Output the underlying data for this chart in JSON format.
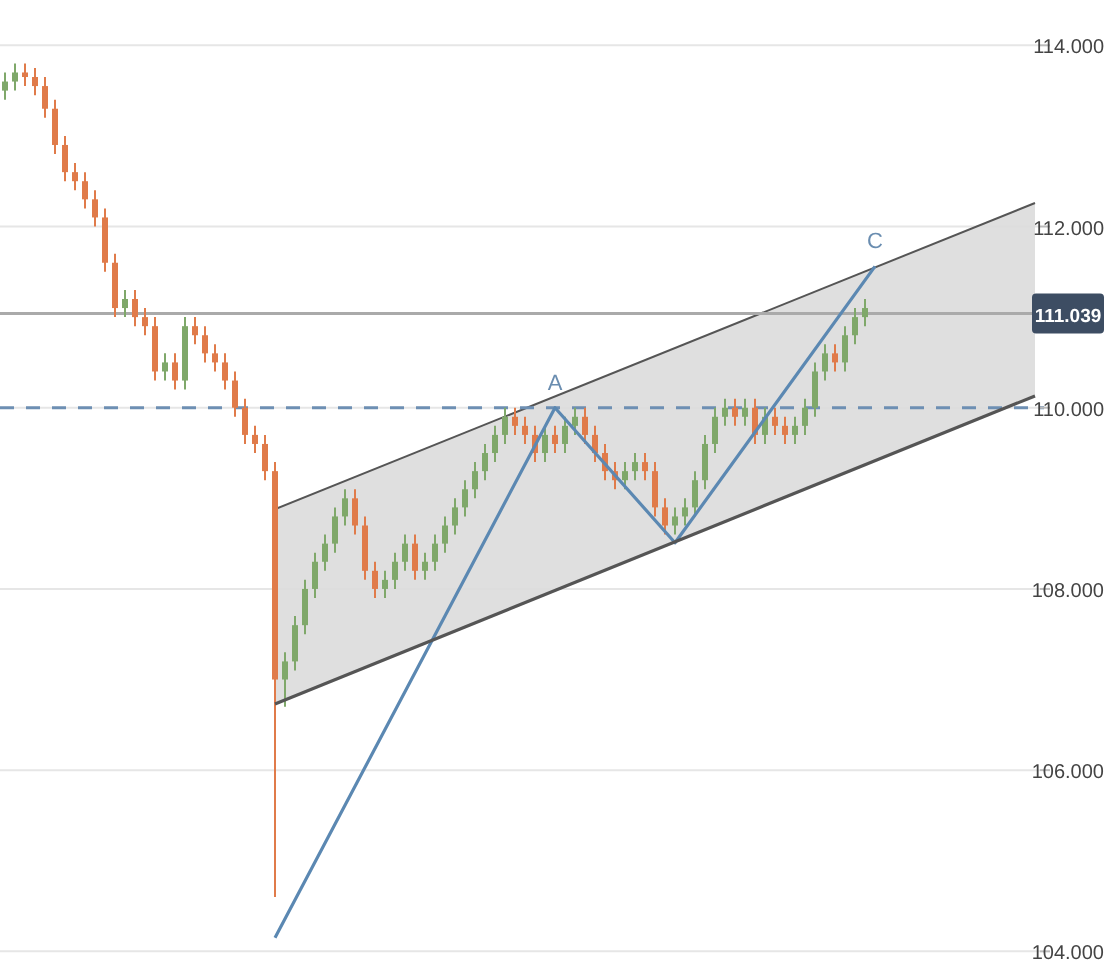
{
  "chart_data": {
    "type": "candlestick",
    "categories": [
      null,
      null,
      null,
      null,
      null,
      null,
      null,
      null,
      null,
      null,
      null,
      null,
      null,
      null,
      null,
      null,
      null,
      null,
      null,
      null,
      null,
      null,
      null,
      null,
      null,
      null,
      null,
      null,
      null,
      null,
      null,
      null,
      null,
      null,
      null,
      null,
      null,
      null,
      null,
      null,
      null,
      null,
      null,
      null,
      null,
      null,
      null,
      null,
      null,
      null,
      null,
      null,
      null,
      null,
      null,
      null,
      null,
      null,
      null,
      null,
      null,
      null,
      null,
      null,
      null,
      null,
      null,
      null,
      null,
      null,
      null,
      null,
      null,
      null,
      null,
      null,
      null,
      null,
      null,
      null,
      null,
      null,
      null,
      null,
      null,
      null,
      null,
      null,
      null,
      null,
      null,
      null,
      null,
      null,
      null,
      null,
      null,
      null,
      null,
      null,
      null,
      null,
      null,
      null
    ],
    "ohlc": [
      [
        113.5,
        113.7,
        113.4,
        113.6
      ],
      [
        113.6,
        113.8,
        113.5,
        113.7
      ],
      [
        113.7,
        113.8,
        113.55,
        113.65
      ],
      [
        113.65,
        113.75,
        113.45,
        113.55
      ],
      [
        113.55,
        113.65,
        113.2,
        113.3
      ],
      [
        113.3,
        113.4,
        112.8,
        112.9
      ],
      [
        112.9,
        113.0,
        112.5,
        112.6
      ],
      [
        112.6,
        112.7,
        112.4,
        112.5
      ],
      [
        112.5,
        112.6,
        112.2,
        112.3
      ],
      [
        112.3,
        112.4,
        112.0,
        112.1
      ],
      [
        112.1,
        112.2,
        111.5,
        111.6
      ],
      [
        111.6,
        111.7,
        111.0,
        111.1
      ],
      [
        111.1,
        111.3,
        111.0,
        111.2
      ],
      [
        111.2,
        111.3,
        110.9,
        111.0
      ],
      [
        111.0,
        111.1,
        110.8,
        110.9
      ],
      [
        110.9,
        111.0,
        110.3,
        110.4
      ],
      [
        110.4,
        110.6,
        110.3,
        110.5
      ],
      [
        110.5,
        110.6,
        110.2,
        110.3
      ],
      [
        110.3,
        111.0,
        110.2,
        110.9
      ],
      [
        110.9,
        111.0,
        110.7,
        110.8
      ],
      [
        110.8,
        110.9,
        110.5,
        110.6
      ],
      [
        110.6,
        110.7,
        110.4,
        110.5
      ],
      [
        110.5,
        110.6,
        110.2,
        110.3
      ],
      [
        110.3,
        110.4,
        109.9,
        110.0
      ],
      [
        110.0,
        110.1,
        109.6,
        109.7
      ],
      [
        109.7,
        109.8,
        109.5,
        109.6
      ],
      [
        109.6,
        109.7,
        109.2,
        109.3
      ],
      [
        109.3,
        109.4,
        104.6,
        107.0
      ],
      [
        107.0,
        107.3,
        106.7,
        107.2
      ],
      [
        107.2,
        107.7,
        107.1,
        107.6
      ],
      [
        107.6,
        108.1,
        107.5,
        108.0
      ],
      [
        108.0,
        108.4,
        107.9,
        108.3
      ],
      [
        108.3,
        108.6,
        108.2,
        108.5
      ],
      [
        108.5,
        108.9,
        108.4,
        108.8
      ],
      [
        108.8,
        109.1,
        108.7,
        109.0
      ],
      [
        109.0,
        109.1,
        108.6,
        108.7
      ],
      [
        108.7,
        108.8,
        108.1,
        108.2
      ],
      [
        108.2,
        108.3,
        107.9,
        108.0
      ],
      [
        108.0,
        108.2,
        107.9,
        108.1
      ],
      [
        108.1,
        108.4,
        108.0,
        108.3
      ],
      [
        108.3,
        108.6,
        108.2,
        108.5
      ],
      [
        108.5,
        108.6,
        108.1,
        108.2
      ],
      [
        108.2,
        108.4,
        108.1,
        108.3
      ],
      [
        108.3,
        108.6,
        108.2,
        108.5
      ],
      [
        108.5,
        108.8,
        108.4,
        108.7
      ],
      [
        108.7,
        109.0,
        108.6,
        108.9
      ],
      [
        108.9,
        109.2,
        108.8,
        109.1
      ],
      [
        109.1,
        109.4,
        109.0,
        109.3
      ],
      [
        109.3,
        109.6,
        109.2,
        109.5
      ],
      [
        109.5,
        109.8,
        109.4,
        109.7
      ],
      [
        109.7,
        110.0,
        109.6,
        109.9
      ],
      [
        109.9,
        110.0,
        109.7,
        109.8
      ],
      [
        109.8,
        109.9,
        109.6,
        109.7
      ],
      [
        109.7,
        109.8,
        109.4,
        109.5
      ],
      [
        109.5,
        109.8,
        109.4,
        109.7
      ],
      [
        109.7,
        109.8,
        109.5,
        109.6
      ],
      [
        109.6,
        109.9,
        109.5,
        109.8
      ],
      [
        109.8,
        110.0,
        109.7,
        109.9
      ],
      [
        109.9,
        110.0,
        109.6,
        109.7
      ],
      [
        109.7,
        109.8,
        109.4,
        109.5
      ],
      [
        109.5,
        109.6,
        109.2,
        109.3
      ],
      [
        109.3,
        109.4,
        109.1,
        109.2
      ],
      [
        109.2,
        109.4,
        109.1,
        109.3
      ],
      [
        109.3,
        109.5,
        109.2,
        109.4
      ],
      [
        109.4,
        109.5,
        109.2,
        109.3
      ],
      [
        109.3,
        109.4,
        108.8,
        108.9
      ],
      [
        108.9,
        109.0,
        108.6,
        108.7
      ],
      [
        108.7,
        108.9,
        108.6,
        108.8
      ],
      [
        108.8,
        109.0,
        108.7,
        108.9
      ],
      [
        108.9,
        109.3,
        108.8,
        109.2
      ],
      [
        109.2,
        109.7,
        109.1,
        109.6
      ],
      [
        109.6,
        110.0,
        109.5,
        109.9
      ],
      [
        109.9,
        110.1,
        109.8,
        110.0
      ],
      [
        110.0,
        110.1,
        109.8,
        109.9
      ],
      [
        109.9,
        110.1,
        109.8,
        110.0
      ],
      [
        110.0,
        110.1,
        109.6,
        109.7
      ],
      [
        109.7,
        110.0,
        109.6,
        109.9
      ],
      [
        109.9,
        110.0,
        109.7,
        109.8
      ],
      [
        109.8,
        109.9,
        109.6,
        109.7
      ],
      [
        109.7,
        109.9,
        109.6,
        109.8
      ],
      [
        109.8,
        110.1,
        109.7,
        110.0
      ],
      [
        110.0,
        110.5,
        109.9,
        110.4
      ],
      [
        110.4,
        110.7,
        110.3,
        110.6
      ],
      [
        110.6,
        110.7,
        110.4,
        110.5
      ],
      [
        110.5,
        110.9,
        110.4,
        110.8
      ],
      [
        110.8,
        111.1,
        110.7,
        111.0
      ],
      [
        111.0,
        111.2,
        110.9,
        111.1
      ],
      null,
      null,
      null,
      null,
      null,
      null,
      null,
      null,
      null,
      null,
      null,
      null,
      null,
      null,
      null,
      null,
      null
    ],
    "colors": [
      "#7fa86a",
      "#7fa86a",
      "#e07b4a",
      "#e07b4a",
      "#e07b4a",
      "#e07b4a",
      "#e07b4a",
      "#e07b4a",
      "#e07b4a",
      "#e07b4a",
      "#e07b4a",
      "#e07b4a",
      "#7fa86a",
      "#e07b4a",
      "#e07b4a",
      "#e07b4a",
      "#7fa86a",
      "#e07b4a",
      "#7fa86a",
      "#e07b4a",
      "#e07b4a",
      "#e07b4a",
      "#e07b4a",
      "#e07b4a",
      "#e07b4a",
      "#e07b4a",
      "#e07b4a",
      "#e07b4a",
      "#7fa86a",
      "#7fa86a",
      "#7fa86a",
      "#7fa86a",
      "#7fa86a",
      "#7fa86a",
      "#7fa86a",
      "#e07b4a",
      "#e07b4a",
      "#e07b4a",
      "#7fa86a",
      "#7fa86a",
      "#7fa86a",
      "#e07b4a",
      "#7fa86a",
      "#7fa86a",
      "#7fa86a",
      "#7fa86a",
      "#7fa86a",
      "#7fa86a",
      "#7fa86a",
      "#7fa86a",
      "#7fa86a",
      "#e07b4a",
      "#e07b4a",
      "#e07b4a",
      "#7fa86a",
      "#e07b4a",
      "#7fa86a",
      "#7fa86a",
      "#e07b4a",
      "#e07b4a",
      "#e07b4a",
      "#e07b4a",
      "#7fa86a",
      "#7fa86a",
      "#e07b4a",
      "#e07b4a",
      "#e07b4a",
      "#7fa86a",
      "#7fa86a",
      "#7fa86a",
      "#7fa86a",
      "#7fa86a",
      "#7fa86a",
      "#e07b4a",
      "#7fa86a",
      "#e07b4a",
      "#7fa86a",
      "#e07b4a",
      "#e07b4a",
      "#7fa86a",
      "#7fa86a",
      "#7fa86a",
      "#7fa86a",
      "#e07b4a",
      "#7fa86a",
      "#7fa86a",
      "#7fa86a",
      null,
      null,
      null,
      null,
      null,
      null,
      null,
      null,
      null,
      null,
      null,
      null,
      null,
      null,
      null,
      null,
      null
    ],
    "series": [
      {
        "type": "area",
        "values": [
          null,
          null,
          null,
          null,
          null,
          null,
          null,
          null,
          null,
          null,
          null,
          null,
          null,
          null,
          null,
          null,
          null,
          null,
          null,
          null,
          null,
          null,
          null,
          null,
          null,
          null,
          null,
          108.88,
          null,
          null,
          null,
          null,
          null,
          null,
          null,
          null,
          null,
          null,
          null,
          null,
          null,
          null,
          null,
          null,
          null,
          null,
          null,
          null,
          null,
          null,
          null,
          null,
          null,
          null,
          null,
          null,
          null,
          null,
          null,
          null,
          null,
          null,
          null,
          null,
          null,
          null,
          null,
          null,
          null,
          null,
          null,
          null,
          null,
          null,
          null,
          null,
          null,
          null,
          null,
          null,
          null,
          null,
          null,
          null,
          null,
          null,
          null,
          null,
          null,
          null,
          null,
          null,
          null,
          null,
          null,
          null,
          null,
          null,
          null,
          null,
          null,
          null,
          null,
          112.26
        ],
        "color": "#dcdcdc"
      },
      {
        "type": "line",
        "values": [
          null,
          null,
          null,
          null,
          null,
          null,
          null,
          null,
          null,
          null,
          null,
          null,
          null,
          null,
          null,
          null,
          null,
          null,
          null,
          null,
          null,
          null,
          null,
          null,
          null,
          null,
          null,
          104.15,
          null,
          null,
          null,
          null,
          null,
          null,
          null,
          null,
          null,
          null,
          null,
          null,
          null,
          null,
          null,
          null,
          null,
          null,
          null,
          null,
          null,
          null,
          null,
          null,
          null,
          null,
          null,
          110.0,
          null,
          null,
          null,
          null,
          null,
          null,
          null,
          null,
          null,
          null,
          null,
          108.51,
          null,
          null,
          null,
          null,
          null,
          null,
          null,
          null,
          null,
          null,
          null,
          null,
          null,
          null,
          null,
          null,
          null,
          null,
          null,
          111.56,
          null,
          null,
          null,
          null,
          null,
          null,
          null,
          null,
          null,
          null,
          null,
          null,
          null,
          null,
          null,
          null
        ],
        "color": "#5b88b2"
      },
      {
        "type": "line",
        "values": [
          null,
          null,
          null,
          null,
          null,
          null,
          null,
          null,
          null,
          null,
          null,
          null,
          null,
          null,
          null,
          null,
          null,
          null,
          null,
          null,
          null,
          null,
          null,
          null,
          null,
          null,
          null,
          106.73,
          null,
          null,
          null,
          null,
          null,
          null,
          null,
          null,
          null,
          null,
          null,
          null,
          null,
          null,
          null,
          null,
          null,
          null,
          null,
          null,
          null,
          null,
          null,
          null,
          null,
          null,
          null,
          null,
          null,
          null,
          null,
          null,
          null,
          null,
          null,
          null,
          null,
          null,
          null,
          null,
          null,
          null,
          null,
          null,
          null,
          null,
          null,
          null,
          null,
          null,
          null,
          null,
          null,
          null,
          null,
          null,
          null,
          null,
          null,
          null,
          null,
          null,
          null,
          null,
          null,
          null,
          null,
          null,
          null,
          null,
          null,
          null,
          null,
          null,
          null,
          110.13
        ],
        "color": "#555555"
      }
    ],
    "ylim": [
      103.75,
      114.5
    ],
    "yticks": [
      {
        "value": 104,
        "label": "104.000"
      },
      {
        "value": 106,
        "label": "106.000"
      },
      {
        "value": 108,
        "label": "108.000"
      },
      {
        "value": 110,
        "label": "110.000"
      },
      {
        "value": 112,
        "label": "112.000"
      },
      {
        "value": 114,
        "label": "114.000"
      }
    ],
    "grid": "y",
    "ref_lines": [
      {
        "axis": "y",
        "value": 110,
        "line_style": "dashed",
        "color": "#6d8fb3"
      },
      {
        "axis": "y",
        "value": 111.039,
        "label": "111.039",
        "color": "#aaaaaa"
      }
    ],
    "annotations": [
      {
        "text": "A",
        "y": 110.0
      },
      {
        "text": "C",
        "y": 111.56
      }
    ]
  }
}
